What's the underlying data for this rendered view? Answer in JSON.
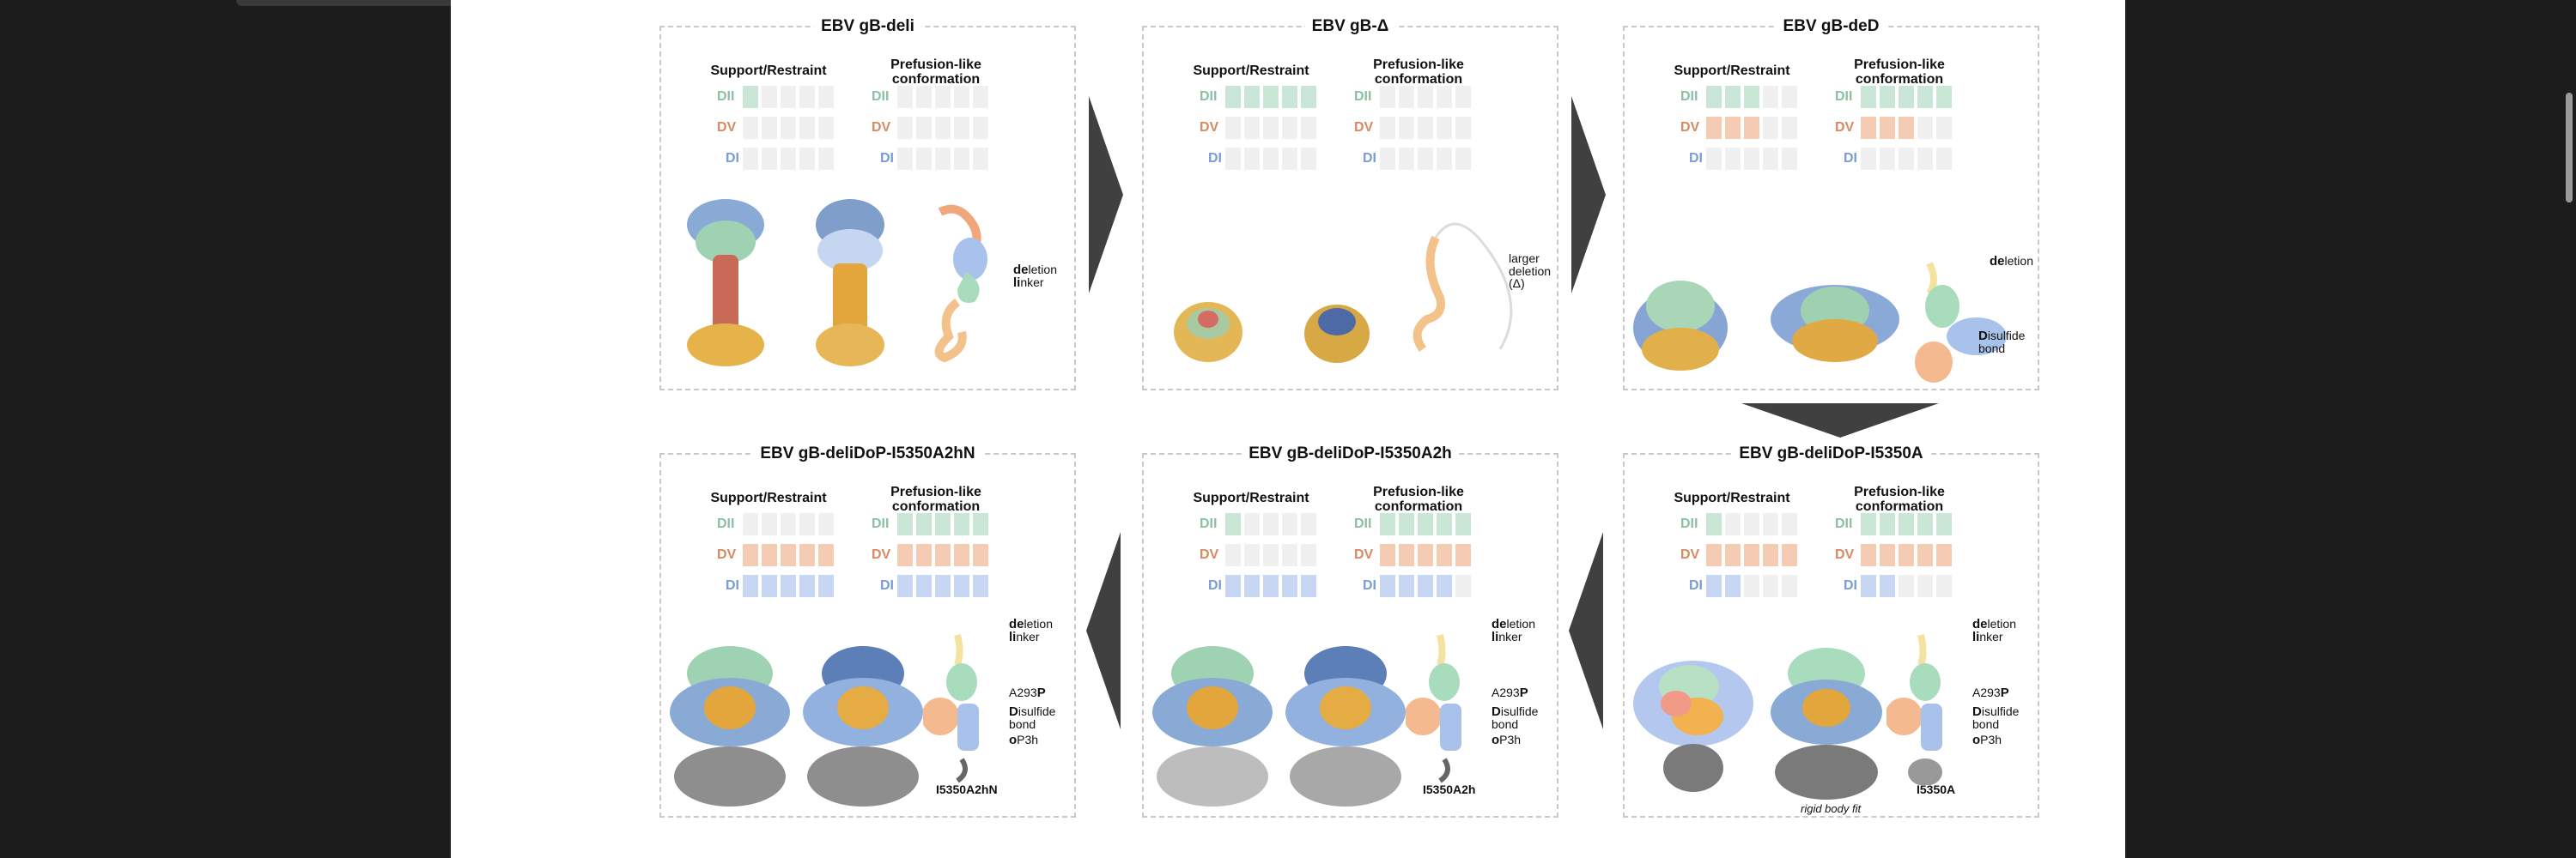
{
  "figure": {
    "panels": [
      {
        "id": "deli",
        "title": "EBV gB-deli",
        "group_support": "Support/Restraint",
        "group_prefusion": "Prefusion-like conformation",
        "rows": [
          "DII",
          "DV",
          "DI"
        ],
        "support": {
          "DII": 1,
          "DV": 0,
          "DI": 0
        },
        "prefusion": {
          "DII": 0,
          "DV": 0,
          "DI": 0
        },
        "annotations": [
          {
            "bold": "de",
            "rest": "letion"
          },
          {
            "bold": "li",
            "rest": "nker"
          }
        ],
        "struct_label": "",
        "rigid_label": ""
      },
      {
        "id": "delta",
        "title": "EBV gB-Δ",
        "group_support": "Support/Restraint",
        "group_prefusion": "Prefusion-like conformation",
        "rows": [
          "DII",
          "DV",
          "DI"
        ],
        "support": {
          "DII": 5,
          "DV": 0,
          "DI": 0
        },
        "prefusion": {
          "DII": 0,
          "DV": 0,
          "DI": 0
        },
        "annotations": [
          {
            "bold": "",
            "rest": "larger deletion (Δ)"
          }
        ],
        "struct_label": "",
        "rigid_label": ""
      },
      {
        "id": "ded",
        "title": "EBV gB-deD",
        "group_support": "Support/Restraint",
        "group_prefusion": "Prefusion-like conformation",
        "rows": [
          "DII",
          "DV",
          "DI"
        ],
        "support": {
          "DII": 3,
          "DV": 3,
          "DI": 0
        },
        "prefusion": {
          "DII": 5,
          "DV": 3,
          "DI": 0
        },
        "annotations": [
          {
            "bold": "de",
            "rest": "letion"
          },
          {
            "bold": "D",
            "rest": "isulfide bond"
          }
        ],
        "struct_label": "",
        "rigid_label": ""
      },
      {
        "id": "a2hn",
        "title": "EBV gB-deliDoP-I5350A2hN",
        "group_support": "Support/Restraint",
        "group_prefusion": "Prefusion-like conformation",
        "rows": [
          "DII",
          "DV",
          "DI"
        ],
        "support": {
          "DII": 0,
          "DV": 5,
          "DI": 5
        },
        "prefusion": {
          "DII": 5,
          "DV": 5,
          "DI": 5
        },
        "annotations": [
          {
            "bold": "de",
            "rest": "letion"
          },
          {
            "bold": "li",
            "rest": "nker"
          },
          {
            "bold": "P",
            "rest": "A293"
          },
          {
            "bold": "D",
            "rest": "isulfide bond"
          },
          {
            "bold": "o",
            "rest": "P3h"
          }
        ],
        "struct_label": "I5350A2hN",
        "rigid_label": ""
      },
      {
        "id": "a2h",
        "title": "EBV gB-deliDoP-I5350A2h",
        "group_support": "Support/Restraint",
        "group_prefusion": "Prefusion-like conformation",
        "rows": [
          "DII",
          "DV",
          "DI"
        ],
        "support": {
          "DII": 1,
          "DV": 0,
          "DI": 5
        },
        "prefusion": {
          "DII": 5,
          "DV": 5,
          "DI": 4
        },
        "annotations": [
          {
            "bold": "de",
            "rest": "letion"
          },
          {
            "bold": "li",
            "rest": "nker"
          },
          {
            "bold": "P",
            "rest": "A293"
          },
          {
            "bold": "D",
            "rest": "isulfide bond"
          },
          {
            "bold": "o",
            "rest": "P3h"
          }
        ],
        "struct_label": "I5350A2h",
        "rigid_label": ""
      },
      {
        "id": "i5350a",
        "title": "EBV gB-deliDoP-I5350A",
        "group_support": "Support/Restraint",
        "group_prefusion": "Prefusion-like conformation",
        "rows": [
          "DII",
          "DV",
          "DI"
        ],
        "support": {
          "DII": 1,
          "DV": 5,
          "DI": 2
        },
        "prefusion": {
          "DII": 5,
          "DV": 5,
          "DI": 2
        },
        "annotations": [
          {
            "bold": "de",
            "rest": "letion"
          },
          {
            "bold": "li",
            "rest": "nker"
          },
          {
            "bold": "P",
            "rest": "A293"
          },
          {
            "bold": "D",
            "rest": "isulfide bond"
          },
          {
            "bold": "o",
            "rest": "P3h"
          }
        ],
        "struct_label": "I5350A",
        "rigid_label": "rigid body fit"
      }
    ],
    "colors": {
      "DII": "#c9e6d6",
      "DV": "#f6cbb4",
      "DI": "#c7d6f2",
      "DII_label": "#8cc0a3",
      "DV_label": "#d78a60",
      "DI_label": "#7a9cd6",
      "empty": "#f0f0f0"
    }
  }
}
